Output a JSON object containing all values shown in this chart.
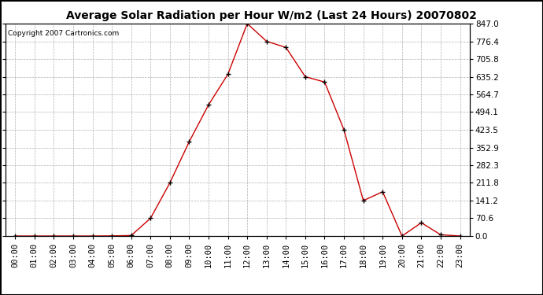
{
  "title": "Average Solar Radiation per Hour W/m2 (Last 24 Hours) 20070802",
  "copyright": "Copyright 2007 Cartronics.com",
  "hours": [
    "00:00",
    "01:00",
    "02:00",
    "03:00",
    "04:00",
    "05:00",
    "06:00",
    "07:00",
    "08:00",
    "09:00",
    "10:00",
    "11:00",
    "12:00",
    "13:00",
    "14:00",
    "15:00",
    "16:00",
    "17:00",
    "18:00",
    "19:00",
    "20:00",
    "21:00",
    "22:00",
    "23:00"
  ],
  "values": [
    0.0,
    0.0,
    0.0,
    0.0,
    0.0,
    0.5,
    2.0,
    70.6,
    211.8,
    376.0,
    523.0,
    645.0,
    847.0,
    776.4,
    752.0,
    635.2,
    614.0,
    423.5,
    141.2,
    176.4,
    0.0,
    52.9,
    5.0,
    0.0
  ],
  "y_ticks": [
    0.0,
    70.6,
    141.2,
    211.8,
    282.3,
    352.9,
    423.5,
    494.1,
    564.7,
    635.2,
    705.8,
    776.4,
    847.0
  ],
  "line_color": "#cc0000",
  "marker": "+",
  "background_color": "#ffffff",
  "grid_color": "#b0b0b0",
  "title_fontsize": 10,
  "copyright_fontsize": 6.5,
  "tick_fontsize": 7.5,
  "ylim_max": 847.0
}
